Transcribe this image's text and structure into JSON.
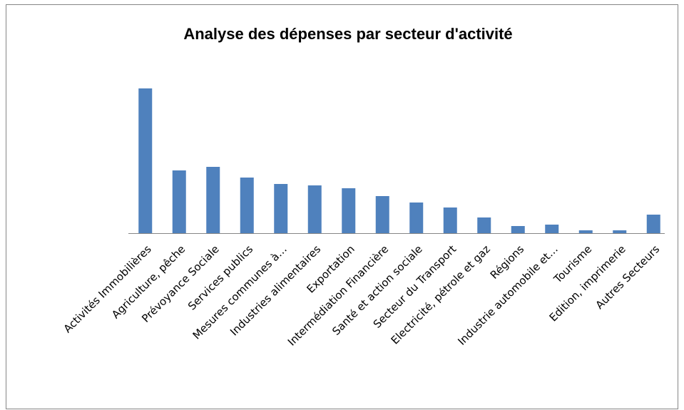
{
  "chart_data": {
    "type": "bar",
    "title": "Analyse des dépenses par secteur d'activité",
    "categories": [
      "Activités Immobilières",
      "Agriculture, pêche",
      "Prévoyance Sociale",
      "Services publics",
      "Mesures communes à…",
      "Industries alimentaires",
      "Exportation",
      "Intermédiation Financière",
      "Santé et action sociale",
      "Secteur du Transport",
      "Electricité, pétrole et gaz",
      "Régions",
      "Industrie automobile et…",
      "Tourisme",
      "Edition, imprimerie",
      "Autres Secteurs"
    ],
    "values": [
      203,
      88,
      93,
      78,
      69,
      67,
      63,
      52,
      43,
      36,
      22,
      10,
      12,
      4,
      4,
      26
    ],
    "color": "#4f81bd",
    "ylim": [
      0,
      220
    ]
  }
}
